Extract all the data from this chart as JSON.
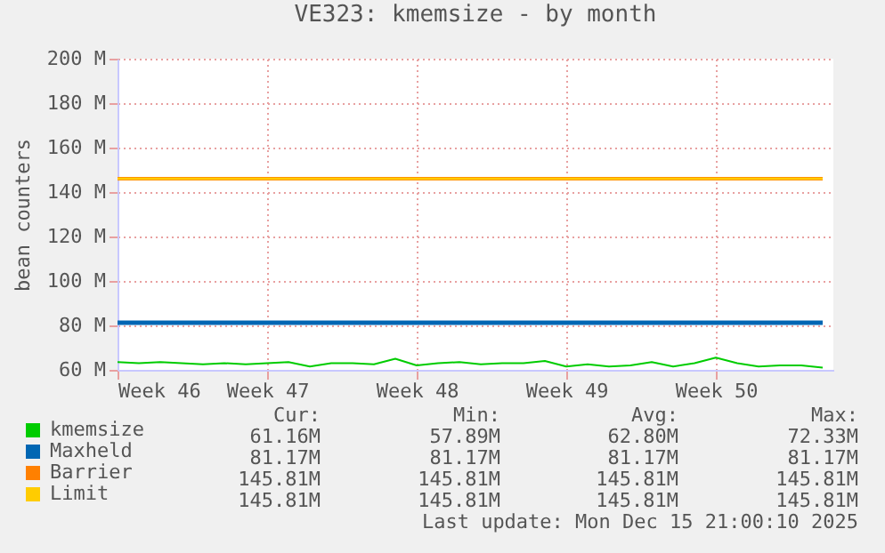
{
  "chart_data": {
    "type": "line",
    "title": "VE323: kmemsize - by month",
    "ylabel": "bean counters",
    "xlim": [
      "2025-11-10",
      "2025-12-13T12:00"
    ],
    "xticks": [
      {
        "value": "2025-11-10",
        "label": "Week 46"
      },
      {
        "value": "2025-11-17",
        "label": "Week 47"
      },
      {
        "value": "2025-11-24",
        "label": "Week 48"
      },
      {
        "value": "2025-12-01",
        "label": "Week 49"
      },
      {
        "value": "2025-12-08",
        "label": "Week 50"
      }
    ],
    "ylim": [
      60,
      200
    ],
    "yticks": [
      {
        "value": 60,
        "label": "60 M"
      },
      {
        "value": 80,
        "label": "80 M"
      },
      {
        "value": 100,
        "label": "100 M"
      },
      {
        "value": 120,
        "label": "120 M"
      },
      {
        "value": 140,
        "label": "140 M"
      },
      {
        "value": 160,
        "label": "160 M"
      },
      {
        "value": 180,
        "label": "180 M"
      },
      {
        "value": 200,
        "label": "200 M"
      }
    ],
    "grid": true,
    "legend": "bottom left",
    "x": [
      "2025-11-10",
      "2025-11-11",
      "2025-11-12",
      "2025-11-13",
      "2025-11-14",
      "2025-11-15",
      "2025-11-16",
      "2025-11-17",
      "2025-11-18",
      "2025-11-19",
      "2025-11-20",
      "2025-11-21",
      "2025-11-22",
      "2025-11-23",
      "2025-11-24",
      "2025-11-25",
      "2025-11-26",
      "2025-11-27",
      "2025-11-28",
      "2025-11-29",
      "2025-11-30",
      "2025-12-01",
      "2025-12-02",
      "2025-12-03",
      "2025-12-04",
      "2025-12-05",
      "2025-12-06",
      "2025-12-07",
      "2025-12-08",
      "2025-12-09",
      "2025-12-10",
      "2025-12-11",
      "2025-12-12",
      "2025-12-13"
    ],
    "series": [
      {
        "name": "kmemsize",
        "color": "#00cc00",
        "values": [
          63.5,
          63,
          63.5,
          63,
          62.5,
          63,
          62.5,
          63,
          63.5,
          61.5,
          63,
          63,
          62.5,
          65,
          62,
          63,
          63.5,
          62.5,
          63,
          63,
          64,
          61.5,
          62.5,
          61.5,
          62,
          63.5,
          61.5,
          63,
          65.5,
          63,
          61.5,
          62,
          62,
          61
        ]
      },
      {
        "name": "Maxheld",
        "color": "#0066b3",
        "x": [
          "2025-11-10",
          "2025-12-13"
        ],
        "values": [
          81.2,
          81.2
        ]
      },
      {
        "name": "Barrier",
        "color": "#ff8000",
        "x": [
          "2025-11-10",
          "2025-12-13"
        ],
        "values": [
          146,
          146
        ]
      },
      {
        "name": "Limit",
        "color": "#ffcc00",
        "x": [
          "2025-11-10",
          "2025-12-13"
        ],
        "values": [
          146,
          146
        ]
      }
    ],
    "annotations": [
      "Cur:",
      "Min:",
      "Avg:",
      "Max:",
      "61.16M",
      "57.89M",
      "62.80M",
      "72.33M",
      "81.17M",
      "81.17M",
      "81.17M",
      "81.17M",
      "145.81M",
      "145.81M",
      "145.81M",
      "145.81M",
      "145.81M",
      "145.81M",
      "145.81M",
      "145.81M",
      "Last update: Mon Dec 15 21:00:10 2025"
    ]
  }
}
